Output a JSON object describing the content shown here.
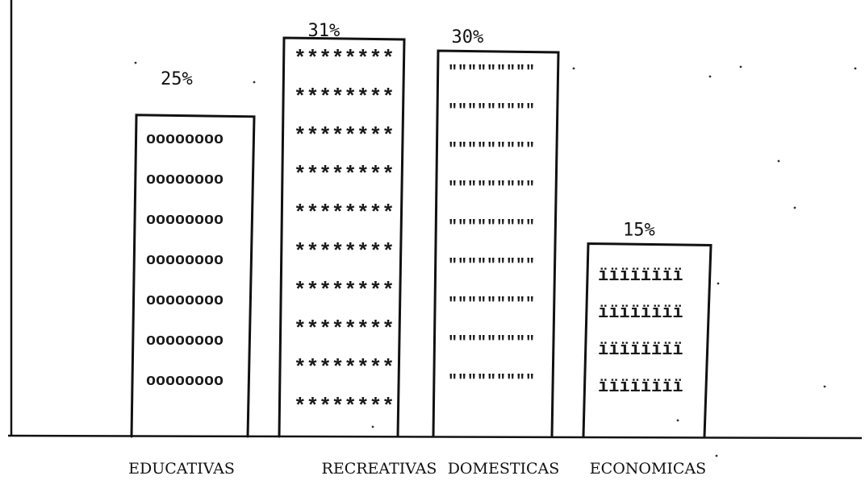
{
  "chart_data": {
    "type": "bar",
    "categories": [
      "EDUCATIVAS",
      "RECREATIVAS",
      "DOMESTICAS",
      "ECONOMICAS"
    ],
    "values": [
      25,
      31,
      30,
      15
    ],
    "data_labels": [
      "25%",
      "31%",
      "30%",
      "15%"
    ],
    "fill_patterns": [
      "oooooooo",
      "********",
      "\"\"\"\"\"\"\"\"\"",
      "ïïïïïïïï"
    ],
    "ylim": [
      0,
      32
    ],
    "grid": false,
    "legend": "none",
    "colors": {
      "ink": "#111111",
      "background": "#ffffff"
    }
  }
}
